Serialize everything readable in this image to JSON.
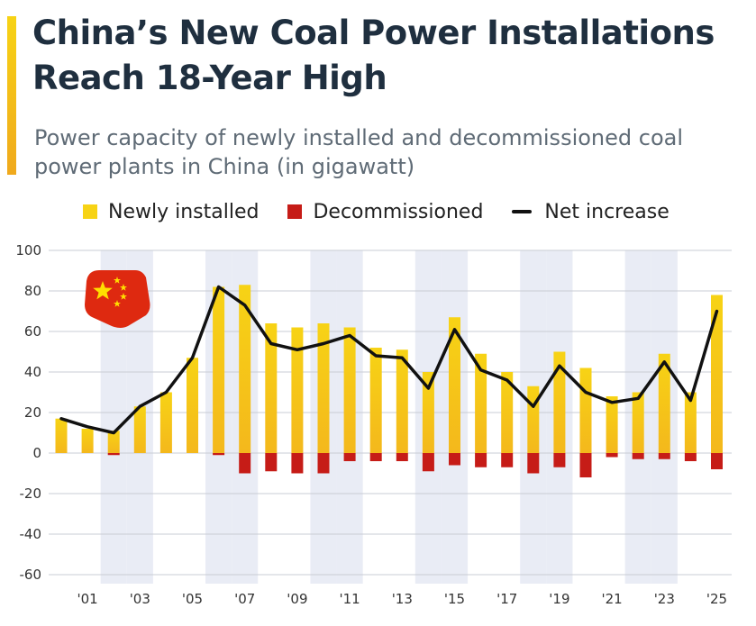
{
  "header": {
    "title": "China’s New Coal Power Installations Reach 18-Year High",
    "subtitle": "Power capacity of newly installed and decommissioned coal power plants in China (in gigawatt)"
  },
  "legend": {
    "installed": "Newly installed",
    "decommissioned": "Decommissioned",
    "net": "Net increase"
  },
  "colors": {
    "installed_top": "#f7d315",
    "installed_bottom": "#f4b81c",
    "decommissioned": "#c61c17",
    "net_line": "#111111",
    "band": "#e9ecf5",
    "flag_red": "#de2910",
    "flag_star": "#ffde00"
  },
  "icons": {
    "flag": "china-flag-icon"
  },
  "chart_data": {
    "type": "bar",
    "categories": [
      "2000",
      "2001",
      "2002",
      "2003",
      "2004",
      "2005",
      "2006",
      "2007",
      "2008",
      "2009",
      "2010",
      "2011",
      "2012",
      "2013",
      "2014",
      "2015",
      "2016",
      "2017",
      "2018",
      "2019",
      "2020",
      "2021",
      "2022",
      "2023",
      "2024",
      "2025"
    ],
    "x_tick_labels": [
      "'01",
      "'03",
      "'05",
      "'07",
      "'09",
      "'11",
      "'13",
      "'15",
      "'17",
      "'19",
      "'21",
      "'23",
      "'25"
    ],
    "x_tick_categories": [
      "2001",
      "2003",
      "2005",
      "2007",
      "2009",
      "2011",
      "2013",
      "2015",
      "2017",
      "2019",
      "2021",
      "2023",
      "2025"
    ],
    "series": [
      {
        "name": "Newly installed",
        "type": "bar",
        "values": [
          17,
          12,
          11,
          23,
          30,
          47,
          82,
          83,
          64,
          62,
          64,
          62,
          52,
          51,
          40,
          67,
          49,
          40,
          33,
          50,
          42,
          28,
          30,
          49,
          30,
          78
        ]
      },
      {
        "name": "Decommissioned",
        "type": "bar",
        "values": [
          0,
          0,
          -1,
          0,
          0,
          0,
          -1,
          -10,
          -9,
          -10,
          -10,
          -4,
          -4,
          -4,
          -9,
          -6,
          -7,
          -7,
          -10,
          -7,
          -12,
          -2,
          -3,
          -3,
          -4,
          -8
        ]
      },
      {
        "name": "Net increase",
        "type": "line",
        "values": [
          17,
          13,
          10,
          23,
          30,
          47,
          82,
          73,
          54,
          51,
          54,
          58,
          48,
          47,
          32,
          61,
          41,
          36,
          23,
          43,
          30,
          25,
          27,
          45,
          26,
          70
        ]
      }
    ],
    "yticks": [
      100,
      80,
      60,
      40,
      20,
      0,
      -20,
      -40,
      -60
    ],
    "ylim": [
      -60,
      100
    ],
    "xlabel": "",
    "ylabel": "",
    "grid": "horizontal"
  }
}
